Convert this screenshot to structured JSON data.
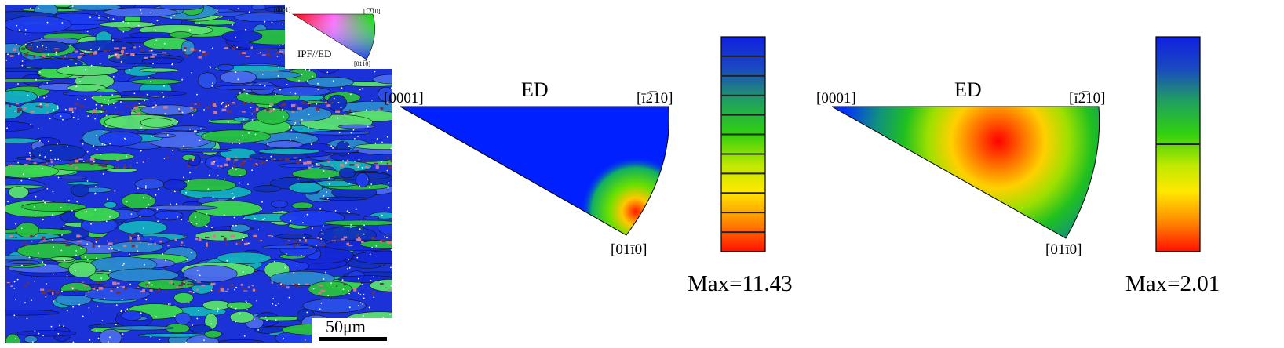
{
  "micrograph": {
    "legend_poles": {
      "p0001": "[0001]",
      "p1210": "[1̅2̅10]",
      "p0110": "[011̅0]"
    },
    "legend_label": "IPF//ED",
    "scale_label": "50μm"
  },
  "ipf_left": {
    "ed_label": "ED",
    "pole_0001": "[0001]",
    "pole_1210": "[ī2̅10]",
    "pole_0110": "[01ī0]",
    "max_label": "Max=11.43",
    "colorbar_divisions": 11
  },
  "ipf_right": {
    "ed_label": "ED",
    "pole_0001": "[0001]",
    "pole_1210": "[ī2̅10]",
    "pole_0110": "[01ī0]",
    "max_label": "Max=2.01",
    "colorbar_divisions": 2
  }
}
